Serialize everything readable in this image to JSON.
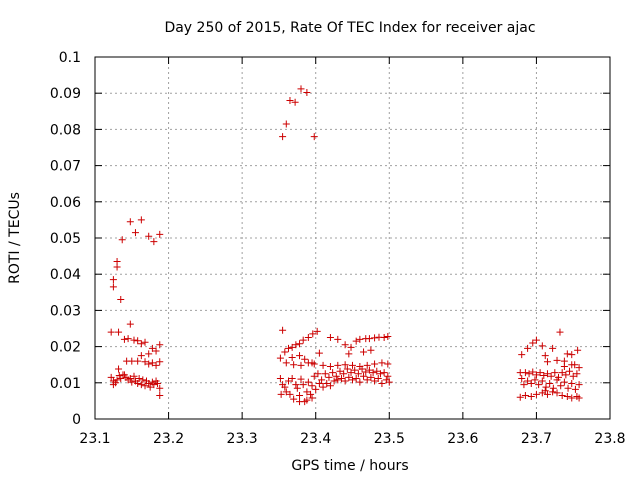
{
  "chart_data": {
    "type": "scatter",
    "title": "Day 250 of 2015, Rate Of TEC Index for receiver ajac",
    "xlabel": "GPS time / hours",
    "ylabel": "ROTI / TECUs",
    "xlim": [
      23.1,
      23.8
    ],
    "ylim": [
      0,
      0.1
    ],
    "xticks": [
      "23.1",
      "23.2",
      "23.3",
      "23.4",
      "23.5",
      "23.6",
      "23.7",
      "23.8"
    ],
    "yticks": [
      "0",
      "0.01",
      "0.02",
      "0.03",
      "0.04",
      "0.05",
      "0.06",
      "0.07",
      "0.08",
      "0.09",
      "0.1"
    ],
    "grid": true,
    "marker": "plus",
    "color": "#cc0000",
    "series": [
      {
        "points": [
          [
            23.125,
            0.0385
          ],
          [
            23.125,
            0.0365
          ],
          [
            23.13,
            0.0435
          ],
          [
            23.13,
            0.042
          ],
          [
            23.135,
            0.033
          ],
          [
            23.137,
            0.0495
          ],
          [
            23.148,
            0.0545
          ],
          [
            23.155,
            0.0515
          ],
          [
            23.163,
            0.055
          ],
          [
            23.173,
            0.0505
          ],
          [
            23.18,
            0.049
          ],
          [
            23.188,
            0.051
          ],
          [
            23.122,
            0.024
          ],
          [
            23.132,
            0.024
          ],
          [
            23.148,
            0.0262
          ],
          [
            23.14,
            0.022
          ],
          [
            23.145,
            0.0222
          ],
          [
            23.153,
            0.0218
          ],
          [
            23.158,
            0.0216
          ],
          [
            23.163,
            0.0208
          ],
          [
            23.168,
            0.0212
          ],
          [
            23.178,
            0.0195
          ],
          [
            23.183,
            0.0188
          ],
          [
            23.188,
            0.0205
          ],
          [
            23.173,
            0.018
          ],
          [
            23.163,
            0.0175
          ],
          [
            23.143,
            0.016
          ],
          [
            23.15,
            0.016
          ],
          [
            23.158,
            0.016
          ],
          [
            23.168,
            0.0158
          ],
          [
            23.178,
            0.0155
          ],
          [
            23.188,
            0.0158
          ],
          [
            23.183,
            0.0148
          ],
          [
            23.173,
            0.0152
          ],
          [
            23.122,
            0.0115
          ],
          [
            23.125,
            0.0105
          ],
          [
            23.128,
            0.01
          ],
          [
            23.13,
            0.0108
          ],
          [
            23.133,
            0.012
          ],
          [
            23.135,
            0.0112
          ],
          [
            23.138,
            0.0122
          ],
          [
            23.142,
            0.0115
          ],
          [
            23.145,
            0.0108
          ],
          [
            23.148,
            0.0112
          ],
          [
            23.15,
            0.0102
          ],
          [
            23.153,
            0.0118
          ],
          [
            23.155,
            0.0105
          ],
          [
            23.158,
            0.0098
          ],
          [
            23.16,
            0.0112
          ],
          [
            23.163,
            0.0095
          ],
          [
            23.165,
            0.0108
          ],
          [
            23.168,
            0.0092
          ],
          [
            23.17,
            0.0105
          ],
          [
            23.173,
            0.0098
          ],
          [
            23.175,
            0.0088
          ],
          [
            23.178,
            0.0102
          ],
          [
            23.18,
            0.0095
          ],
          [
            23.183,
            0.0105
          ],
          [
            23.185,
            0.0098
          ],
          [
            23.188,
            0.0085
          ],
          [
            23.188,
            0.0065
          ],
          [
            23.14,
            0.0122
          ],
          [
            23.125,
            0.0095
          ],
          [
            23.132,
            0.0138
          ],
          [
            23.355,
            0.078
          ],
          [
            23.36,
            0.0815
          ],
          [
            23.365,
            0.088
          ],
          [
            23.372,
            0.0875
          ],
          [
            23.38,
            0.0912
          ],
          [
            23.388,
            0.0902
          ],
          [
            23.398,
            0.078
          ],
          [
            23.355,
            0.0245
          ],
          [
            23.363,
            0.0195
          ],
          [
            23.368,
            0.0198
          ],
          [
            23.373,
            0.0205
          ],
          [
            23.378,
            0.0208
          ],
          [
            23.383,
            0.0218
          ],
          [
            23.39,
            0.0225
          ],
          [
            23.396,
            0.0235
          ],
          [
            23.402,
            0.0242
          ],
          [
            23.42,
            0.0225
          ],
          [
            23.43,
            0.022
          ],
          [
            23.44,
            0.0205
          ],
          [
            23.448,
            0.0198
          ],
          [
            23.455,
            0.0215
          ],
          [
            23.46,
            0.022
          ],
          [
            23.468,
            0.0222
          ],
          [
            23.473,
            0.0222
          ],
          [
            23.48,
            0.0224
          ],
          [
            23.486,
            0.0226
          ],
          [
            23.493,
            0.0225
          ],
          [
            23.498,
            0.0228
          ],
          [
            23.358,
            0.0185
          ],
          [
            23.368,
            0.017
          ],
          [
            23.385,
            0.0165
          ],
          [
            23.395,
            0.0155
          ],
          [
            23.405,
            0.0182
          ],
          [
            23.445,
            0.018
          ],
          [
            23.465,
            0.0185
          ],
          [
            23.475,
            0.019
          ],
          [
            23.378,
            0.0175
          ],
          [
            23.39,
            0.0155
          ],
          [
            23.352,
            0.0168
          ],
          [
            23.36,
            0.0155
          ],
          [
            23.37,
            0.015
          ],
          [
            23.38,
            0.0148
          ],
          [
            23.398,
            0.0152
          ],
          [
            23.41,
            0.0148
          ],
          [
            23.42,
            0.0145
          ],
          [
            23.43,
            0.0148
          ],
          [
            23.44,
            0.015
          ],
          [
            23.45,
            0.0148
          ],
          [
            23.46,
            0.0145
          ],
          [
            23.47,
            0.0148
          ],
          [
            23.48,
            0.0152
          ],
          [
            23.49,
            0.0155
          ],
          [
            23.498,
            0.0152
          ],
          [
            23.352,
            0.0112
          ],
          [
            23.355,
            0.0095
          ],
          [
            23.358,
            0.0088
          ],
          [
            23.36,
            0.0075
          ],
          [
            23.363,
            0.0105
          ],
          [
            23.365,
            0.0068
          ],
          [
            23.368,
            0.0112
          ],
          [
            23.37,
            0.0055
          ],
          [
            23.373,
            0.0095
          ],
          [
            23.375,
            0.0085
          ],
          [
            23.378,
            0.0065
          ],
          [
            23.38,
            0.011
          ],
          [
            23.383,
            0.0095
          ],
          [
            23.385,
            0.0048
          ],
          [
            23.388,
            0.0075
          ],
          [
            23.39,
            0.0102
          ],
          [
            23.393,
            0.0068
          ],
          [
            23.395,
            0.0092
          ],
          [
            23.398,
            0.0118
          ],
          [
            23.4,
            0.0082
          ],
          [
            23.403,
            0.0125
          ],
          [
            23.405,
            0.0098
          ],
          [
            23.408,
            0.0108
          ],
          [
            23.41,
            0.0088
          ],
          [
            23.413,
            0.0125
          ],
          [
            23.415,
            0.0098
          ],
          [
            23.418,
            0.0115
          ],
          [
            23.42,
            0.0092
          ],
          [
            23.423,
            0.0128
          ],
          [
            23.425,
            0.0105
          ],
          [
            23.428,
            0.0118
          ],
          [
            23.43,
            0.0108
          ],
          [
            23.433,
            0.0132
          ],
          [
            23.435,
            0.0112
          ],
          [
            23.438,
            0.0125
          ],
          [
            23.44,
            0.0105
          ],
          [
            23.443,
            0.0138
          ],
          [
            23.445,
            0.0115
          ],
          [
            23.448,
            0.0128
          ],
          [
            23.45,
            0.0108
          ],
          [
            23.453,
            0.0135
          ],
          [
            23.455,
            0.0112
          ],
          [
            23.458,
            0.0125
          ],
          [
            23.46,
            0.0102
          ],
          [
            23.463,
            0.0138
          ],
          [
            23.465,
            0.0118
          ],
          [
            23.468,
            0.013
          ],
          [
            23.47,
            0.0108
          ],
          [
            23.473,
            0.0135
          ],
          [
            23.475,
            0.0115
          ],
          [
            23.478,
            0.0128
          ],
          [
            23.48,
            0.0105
          ],
          [
            23.483,
            0.0132
          ],
          [
            23.485,
            0.0112
          ],
          [
            23.488,
            0.0125
          ],
          [
            23.49,
            0.0098
          ],
          [
            23.493,
            0.0128
          ],
          [
            23.496,
            0.0108
          ],
          [
            23.498,
            0.0118
          ],
          [
            23.5,
            0.0102
          ],
          [
            23.353,
            0.0068
          ],
          [
            23.388,
            0.0052
          ],
          [
            23.378,
            0.0048
          ],
          [
            23.395,
            0.0058
          ],
          [
            23.68,
            0.0178
          ],
          [
            23.688,
            0.0195
          ],
          [
            23.695,
            0.021
          ],
          [
            23.7,
            0.0218
          ],
          [
            23.708,
            0.0202
          ],
          [
            23.712,
            0.0175
          ],
          [
            23.722,
            0.0195
          ],
          [
            23.732,
            0.024
          ],
          [
            23.742,
            0.018
          ],
          [
            23.748,
            0.0178
          ],
          [
            23.756,
            0.019
          ],
          [
            23.738,
            0.016
          ],
          [
            23.728,
            0.0162
          ],
          [
            23.715,
            0.0158
          ],
          [
            23.752,
            0.015
          ],
          [
            23.678,
            0.0128
          ],
          [
            23.68,
            0.0112
          ],
          [
            23.683,
            0.0095
          ],
          [
            23.685,
            0.0128
          ],
          [
            23.688,
            0.0105
          ],
          [
            23.69,
            0.0125
          ],
          [
            23.693,
            0.0098
          ],
          [
            23.695,
            0.013
          ],
          [
            23.698,
            0.0108
          ],
          [
            23.7,
            0.0122
          ],
          [
            23.703,
            0.0095
          ],
          [
            23.705,
            0.0128
          ],
          [
            23.708,
            0.0105
          ],
          [
            23.71,
            0.012
          ],
          [
            23.713,
            0.0088
          ],
          [
            23.715,
            0.0125
          ],
          [
            23.718,
            0.0098
          ],
          [
            23.72,
            0.0118
          ],
          [
            23.723,
            0.0085
          ],
          [
            23.725,
            0.0128
          ],
          [
            23.728,
            0.0108
          ],
          [
            23.73,
            0.0115
          ],
          [
            23.733,
            0.0092
          ],
          [
            23.735,
            0.0128
          ],
          [
            23.738,
            0.0102
          ],
          [
            23.74,
            0.0122
          ],
          [
            23.743,
            0.0085
          ],
          [
            23.745,
            0.0132
          ],
          [
            23.748,
            0.0098
          ],
          [
            23.75,
            0.0118
          ],
          [
            23.753,
            0.0082
          ],
          [
            23.755,
            0.0125
          ],
          [
            23.758,
            0.0095
          ],
          [
            23.758,
            0.0142
          ],
          [
            23.678,
            0.006
          ],
          [
            23.685,
            0.0065
          ],
          [
            23.693,
            0.0062
          ],
          [
            23.7,
            0.0068
          ],
          [
            23.708,
            0.0072
          ],
          [
            23.715,
            0.0068
          ],
          [
            23.722,
            0.0075
          ],
          [
            23.728,
            0.0072
          ],
          [
            23.735,
            0.0065
          ],
          [
            23.742,
            0.0062
          ],
          [
            23.748,
            0.0058
          ],
          [
            23.755,
            0.0062
          ],
          [
            23.758,
            0.0058
          ],
          [
            23.712,
            0.0078
          ],
          [
            23.738,
            0.0145
          ],
          [
            23.748,
            0.015
          ]
        ]
      }
    ]
  }
}
